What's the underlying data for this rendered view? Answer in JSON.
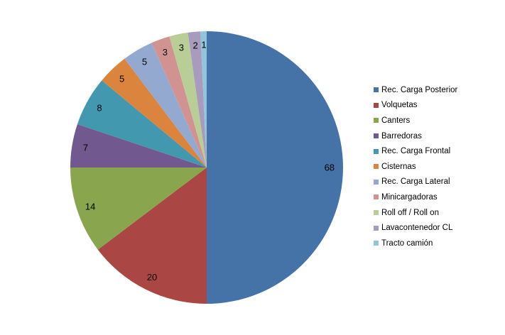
{
  "chart_data": {
    "type": "pie",
    "title": "",
    "categories": [
      "Rec. Carga Posterior",
      "Volquetas",
      "Canters",
      "Barredoras",
      "Rec. Carga Frontal",
      "Cisternas",
      "Rec. Carga Lateral",
      "Minicargadoras",
      "Roll off / Roll on",
      "Lavacontenedor CL",
      "Tracto camión"
    ],
    "values": [
      68,
      20,
      14,
      7,
      8,
      5,
      5,
      3,
      3,
      2,
      1
    ],
    "colors": [
      "#4572A7",
      "#AA4643",
      "#89A54E",
      "#71588F",
      "#4198AF",
      "#DB843D",
      "#93A9CF",
      "#D19392",
      "#B9CD96",
      "#A99BBD",
      "#92C5DA"
    ],
    "legend_position": "right",
    "start_angle": "top, clockwise"
  }
}
